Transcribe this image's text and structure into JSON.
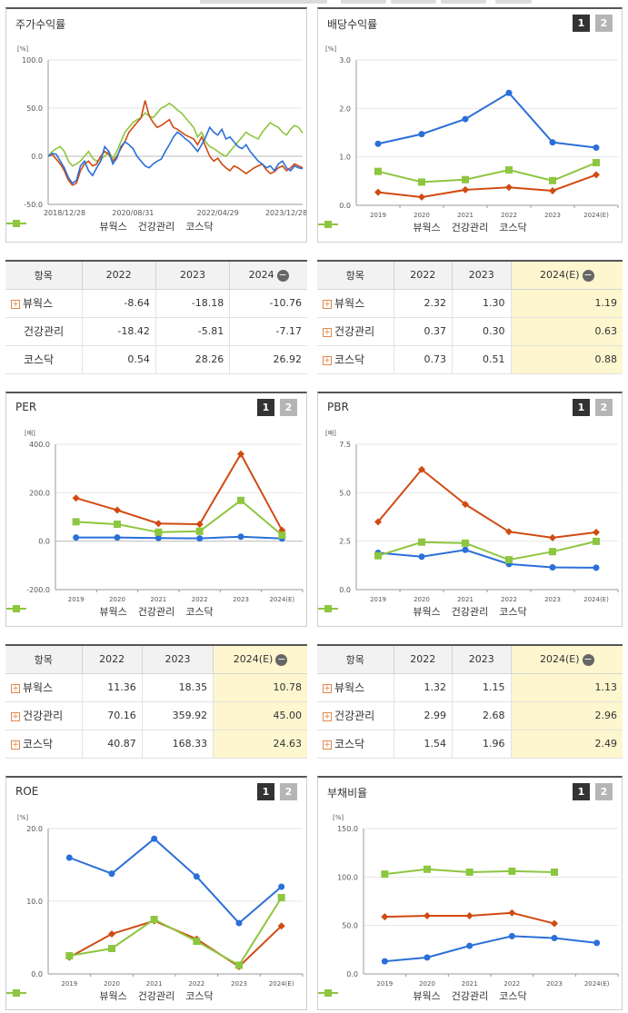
{
  "colors": {
    "s1": "#2b6fd8",
    "s2": "#d14a12",
    "s3": "#8dc63f"
  },
  "legend": [
    "뷰웍스",
    "건강관리",
    "코스닥"
  ],
  "panels": {
    "stock": {
      "title": "주가수익률",
      "unit": "[%]"
    },
    "div": {
      "title": "배당수익률",
      "unit": "[%]"
    },
    "per": {
      "title": "PER",
      "unit": "[배]"
    },
    "pbr": {
      "title": "PBR",
      "unit": "[배]"
    },
    "roe": {
      "title": "ROE",
      "unit": "[%]"
    },
    "debt": {
      "title": "부채비율",
      "unit": "[%]"
    }
  },
  "buttons": [
    "1",
    "2"
  ],
  "tables": {
    "stock": {
      "headers": [
        "항목",
        "2022",
        "2023",
        "2024"
      ],
      "rows": [
        {
          "name": "뷰웍스",
          "plus": true,
          "vals": [
            "-8.64",
            "-18.18",
            "-10.76"
          ]
        },
        {
          "name": "건강관리",
          "plus": false,
          "vals": [
            "-18.42",
            "-5.81",
            "-7.17"
          ]
        },
        {
          "name": "코스닥",
          "plus": false,
          "vals": [
            "0.54",
            "28.26",
            "26.92"
          ]
        }
      ]
    },
    "div": {
      "headers": [
        "항목",
        "2022",
        "2023",
        "2024(E)"
      ],
      "rows": [
        {
          "name": "뷰웍스",
          "plus": true,
          "vals": [
            "2.32",
            "1.30",
            "1.19"
          ]
        },
        {
          "name": "건강관리",
          "plus": true,
          "vals": [
            "0.37",
            "0.30",
            "0.63"
          ]
        },
        {
          "name": "코스닥",
          "plus": true,
          "vals": [
            "0.73",
            "0.51",
            "0.88"
          ]
        }
      ]
    },
    "per": {
      "headers": [
        "항목",
        "2022",
        "2023",
        "2024(E)"
      ],
      "rows": [
        {
          "name": "뷰웍스",
          "plus": true,
          "vals": [
            "11.36",
            "18.35",
            "10.78"
          ]
        },
        {
          "name": "건강관리",
          "plus": true,
          "vals": [
            "70.16",
            "359.92",
            "45.00"
          ]
        },
        {
          "name": "코스닥",
          "plus": true,
          "vals": [
            "40.87",
            "168.33",
            "24.63"
          ]
        }
      ]
    },
    "pbr": {
      "headers": [
        "항목",
        "2022",
        "2023",
        "2024(E)"
      ],
      "rows": [
        {
          "name": "뷰웍스",
          "plus": true,
          "vals": [
            "1.32",
            "1.15",
            "1.13"
          ]
        },
        {
          "name": "건강관리",
          "plus": true,
          "vals": [
            "2.99",
            "2.68",
            "2.96"
          ]
        },
        {
          "name": "코스닥",
          "plus": true,
          "vals": [
            "1.54",
            "1.96",
            "2.49"
          ]
        }
      ]
    }
  },
  "chart_data": [
    {
      "id": "stock",
      "type": "line",
      "title": "주가수익률",
      "ylabel": "[%]",
      "ylim": [
        -50,
        100
      ],
      "yticks": [
        "100.0",
        "50.0",
        "0.0",
        "-50.0"
      ],
      "xticks": [
        "2018/12/28",
        "2020/08/31",
        "2022/04/29",
        "2023/12/28"
      ],
      "series": [
        {
          "name": "뷰웍스",
          "values": [
            0,
            3,
            2,
            -5,
            -12,
            -22,
            -28,
            -25,
            -10,
            -5,
            -15,
            -20,
            -12,
            -5,
            10,
            5,
            -8,
            -2,
            10,
            15,
            12,
            8,
            0,
            -5,
            -10,
            -12,
            -8,
            -5,
            -3,
            5,
            12,
            20,
            25,
            22,
            18,
            15,
            10,
            5,
            12,
            20,
            30,
            25,
            22,
            28,
            18,
            20,
            15,
            10,
            8,
            12,
            5,
            0,
            -5,
            -8,
            -12,
            -10,
            -15,
            -8,
            -5,
            -12,
            -15,
            -10,
            -12,
            -13
          ]
        },
        {
          "name": "건강관리",
          "values": [
            0,
            2,
            -3,
            -8,
            -15,
            -25,
            -30,
            -28,
            -15,
            -8,
            -5,
            -10,
            -8,
            0,
            5,
            2,
            -5,
            0,
            8,
            15,
            25,
            30,
            35,
            40,
            58,
            42,
            35,
            30,
            32,
            35,
            38,
            30,
            28,
            25,
            22,
            20,
            18,
            12,
            20,
            10,
            0,
            -5,
            -2,
            -8,
            -12,
            -15,
            -10,
            -12,
            -15,
            -18,
            -15,
            -12,
            -10,
            -8,
            -14,
            -18,
            -16,
            -12,
            -10,
            -15,
            -12,
            -8,
            -10,
            -12
          ]
        },
        {
          "name": "코스닥",
          "values": [
            0,
            5,
            8,
            10,
            5,
            -5,
            -10,
            -8,
            -5,
            0,
            5,
            -2,
            -5,
            -3,
            0,
            5,
            -2,
            5,
            15,
            25,
            30,
            35,
            38,
            40,
            45,
            42,
            40,
            45,
            50,
            52,
            55,
            52,
            48,
            45,
            40,
            35,
            30,
            20,
            25,
            15,
            10,
            8,
            5,
            2,
            0,
            5,
            10,
            15,
            20,
            25,
            22,
            20,
            18,
            25,
            30,
            35,
            32,
            30,
            25,
            22,
            28,
            32,
            30,
            24
          ]
        }
      ]
    },
    {
      "id": "div",
      "type": "line",
      "title": "배당수익률",
      "ylabel": "[%]",
      "ylim": [
        0,
        3
      ],
      "yticks": [
        "3.0",
        "2.0",
        "1.0",
        "0.0"
      ],
      "categories": [
        "2019",
        "2020",
        "2021",
        "2022",
        "2023",
        "2024(E)"
      ],
      "series": [
        {
          "name": "뷰웍스",
          "values": [
            1.27,
            1.47,
            1.78,
            2.32,
            1.3,
            1.19
          ]
        },
        {
          "name": "건강관리",
          "values": [
            0.27,
            0.17,
            0.32,
            0.37,
            0.3,
            0.63
          ]
        },
        {
          "name": "코스닥",
          "values": [
            0.7,
            0.48,
            0.53,
            0.73,
            0.51,
            0.88
          ]
        }
      ]
    },
    {
      "id": "per",
      "type": "line",
      "title": "PER",
      "ylabel": "[배]",
      "ylim": [
        -200,
        400
      ],
      "yticks": [
        "400.0",
        "200.0",
        "0.0",
        "-200.0"
      ],
      "categories": [
        "2019",
        "2020",
        "2021",
        "2022",
        "2023",
        "2024(E)"
      ],
      "series": [
        {
          "name": "뷰웍스",
          "values": [
            15,
            15,
            13,
            11.36,
            18.35,
            10.78
          ]
        },
        {
          "name": "건강관리",
          "values": [
            178,
            128,
            73,
            70.16,
            359.92,
            45.0
          ]
        },
        {
          "name": "코스닥",
          "values": [
            80,
            70,
            37,
            40.87,
            168.33,
            24.63
          ]
        }
      ]
    },
    {
      "id": "pbr",
      "type": "line",
      "title": "PBR",
      "ylabel": "[배]",
      "ylim": [
        0,
        7.5
      ],
      "yticks": [
        "7.5",
        "5.0",
        "2.5",
        "0.0"
      ],
      "categories": [
        "2019",
        "2020",
        "2021",
        "2022",
        "2023",
        "2024(E)"
      ],
      "series": [
        {
          "name": "뷰웍스",
          "values": [
            1.9,
            1.7,
            2.05,
            1.32,
            1.15,
            1.13
          ]
        },
        {
          "name": "건강관리",
          "values": [
            3.5,
            6.2,
            4.4,
            2.99,
            2.68,
            2.96
          ]
        },
        {
          "name": "코스닥",
          "values": [
            1.75,
            2.45,
            2.4,
            1.54,
            1.96,
            2.49
          ]
        }
      ]
    },
    {
      "id": "roe",
      "type": "line",
      "title": "ROE",
      "ylabel": "[%]",
      "ylim": [
        0,
        20
      ],
      "yticks": [
        "20.0",
        "10.0",
        "0.0"
      ],
      "categories": [
        "2019",
        "2020",
        "2021",
        "2022",
        "2023",
        "2024(E)"
      ],
      "series": [
        {
          "name": "뷰웍스",
          "values": [
            16.0,
            13.8,
            18.6,
            13.4,
            7.0,
            12.0
          ]
        },
        {
          "name": "건강관리",
          "values": [
            2.3,
            5.5,
            7.3,
            4.8,
            1.0,
            6.6
          ]
        },
        {
          "name": "코스닥",
          "values": [
            2.5,
            3.5,
            7.5,
            4.5,
            1.2,
            10.5
          ]
        }
      ]
    },
    {
      "id": "debt",
      "type": "line",
      "title": "부채비율",
      "ylabel": "[%]",
      "ylim": [
        0,
        150
      ],
      "yticks": [
        "150.0",
        "100.0",
        "50.0",
        "0.0"
      ],
      "categories": [
        "2019",
        "2020",
        "2021",
        "2022",
        "2023",
        "2024(E)"
      ],
      "series": [
        {
          "name": "뷰웍스",
          "values": [
            13,
            17,
            29,
            39,
            37,
            32
          ]
        },
        {
          "name": "건강관리",
          "values": [
            59,
            60,
            60,
            63,
            52,
            null
          ]
        },
        {
          "name": "코스닥",
          "values": [
            103,
            108,
            105,
            106,
            105,
            null
          ]
        }
      ]
    }
  ]
}
